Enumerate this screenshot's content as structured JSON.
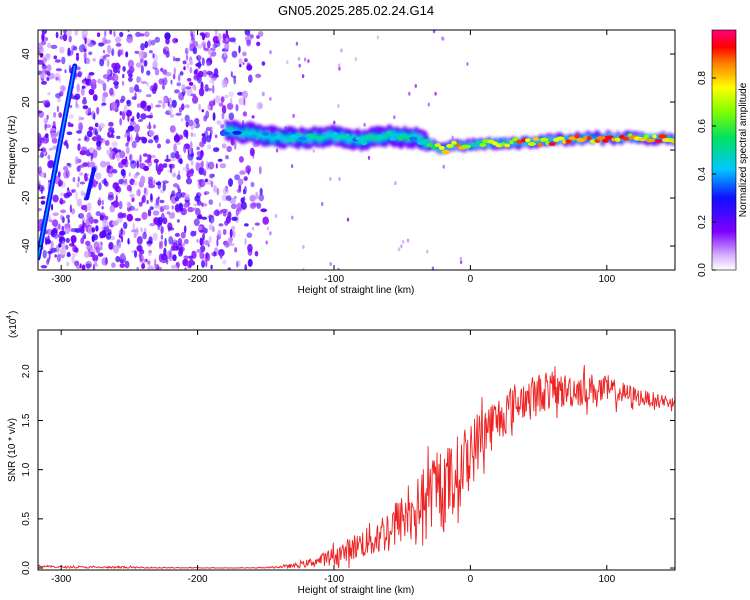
{
  "figure": {
    "title": "GN05.2025.285.02.24.G14"
  },
  "chart_data": [
    {
      "type": "heatmap",
      "panel": "spectrogram",
      "xlabel": "Height of straight line (km)",
      "ylabel": "Frequency (Hz)",
      "xlim": [
        -317,
        150
      ],
      "ylim": [
        -50,
        50
      ],
      "xticks": [
        -300,
        -200,
        -100,
        0,
        100
      ],
      "yticks": [
        -40,
        -20,
        0,
        20,
        40
      ],
      "colorbar": {
        "label": "Normalized spectral amplitude",
        "range": [
          0,
          1
        ],
        "ticks": [
          "0.0",
          "0.2",
          "0.4",
          "0.6",
          "0.8"
        ],
        "tick_values": [
          0.0,
          0.2,
          0.4,
          0.6,
          0.8
        ]
      },
      "ridge": {
        "description": "dominant frequency track",
        "x": [
          -180,
          -160,
          -140,
          -120,
          -100,
          -80,
          -60,
          -40,
          -20,
          -10,
          0,
          20,
          40,
          60,
          80,
          100,
          120,
          150
        ],
        "frequency_hz": [
          8,
          7,
          5,
          5,
          6,
          4,
          6,
          5,
          0,
          2,
          2,
          3,
          3,
          4,
          5,
          5,
          5,
          5
        ],
        "amplitude": [
          0.35,
          0.45,
          0.5,
          0.5,
          0.45,
          0.5,
          0.55,
          0.5,
          0.9,
          0.9,
          0.6,
          0.85,
          0.9,
          0.95,
          0.95,
          0.95,
          0.95,
          0.95
        ]
      },
      "diagonal_streak": {
        "x": [
          -317,
          -290
        ],
        "frequency_hz": [
          -45,
          35
        ]
      },
      "short_streak": {
        "x": [
          -281,
          -276
        ],
        "frequency_hz": [
          -20,
          -8
        ]
      },
      "noise_region": {
        "x": [
          -317,
          -150
        ],
        "frequency_hz": [
          -50,
          50
        ],
        "amplitude_range": [
          0.05,
          0.25
        ]
      }
    },
    {
      "type": "line",
      "panel": "snr",
      "xlabel": "Height of straight line (km)",
      "ylabel": "SNR (10 * v/v)",
      "multiplier_label": "(x10",
      "multiplier_exponent": "4",
      "xlim": [
        -317,
        150
      ],
      "ylim": [
        -0.02,
        2.42
      ],
      "xticks": [
        -300,
        -200,
        -100,
        0,
        100
      ],
      "yticks": [
        0.0,
        0.5,
        1.0,
        1.5,
        2.0
      ],
      "ytick_labels": [
        "0.0",
        "0.5",
        "1.0",
        "1.5",
        "2.0"
      ],
      "color": "#ee2222",
      "series": [
        {
          "name": "SNR",
          "x": [
            -317,
            -300,
            -250,
            -200,
            -160,
            -140,
            -125,
            -110,
            -100,
            -90,
            -80,
            -70,
            -60,
            -50,
            -40,
            -30,
            -20,
            -10,
            0,
            10,
            20,
            30,
            40,
            50,
            60,
            70,
            80,
            90,
            100,
            110,
            120,
            130,
            140,
            150
          ],
          "y": [
            0.02,
            0.01,
            0.005,
            0.0,
            0.0,
            0.01,
            0.03,
            0.08,
            0.12,
            0.18,
            0.25,
            0.3,
            0.4,
            0.5,
            0.6,
            0.75,
            0.8,
            0.95,
            1.15,
            1.4,
            1.5,
            1.65,
            1.72,
            1.78,
            1.8,
            1.8,
            1.82,
            1.82,
            1.8,
            1.78,
            1.75,
            1.72,
            1.7,
            1.68
          ],
          "noise": [
            0.01,
            0.01,
            0.01,
            0.005,
            0.005,
            0.01,
            0.03,
            0.06,
            0.1,
            0.12,
            0.15,
            0.2,
            0.22,
            0.25,
            0.3,
            0.35,
            0.4,
            0.4,
            0.35,
            0.3,
            0.25,
            0.22,
            0.2,
            0.2,
            0.2,
            0.18,
            0.18,
            0.16,
            0.15,
            0.12,
            0.1,
            0.08,
            0.07,
            0.06
          ]
        }
      ]
    }
  ]
}
